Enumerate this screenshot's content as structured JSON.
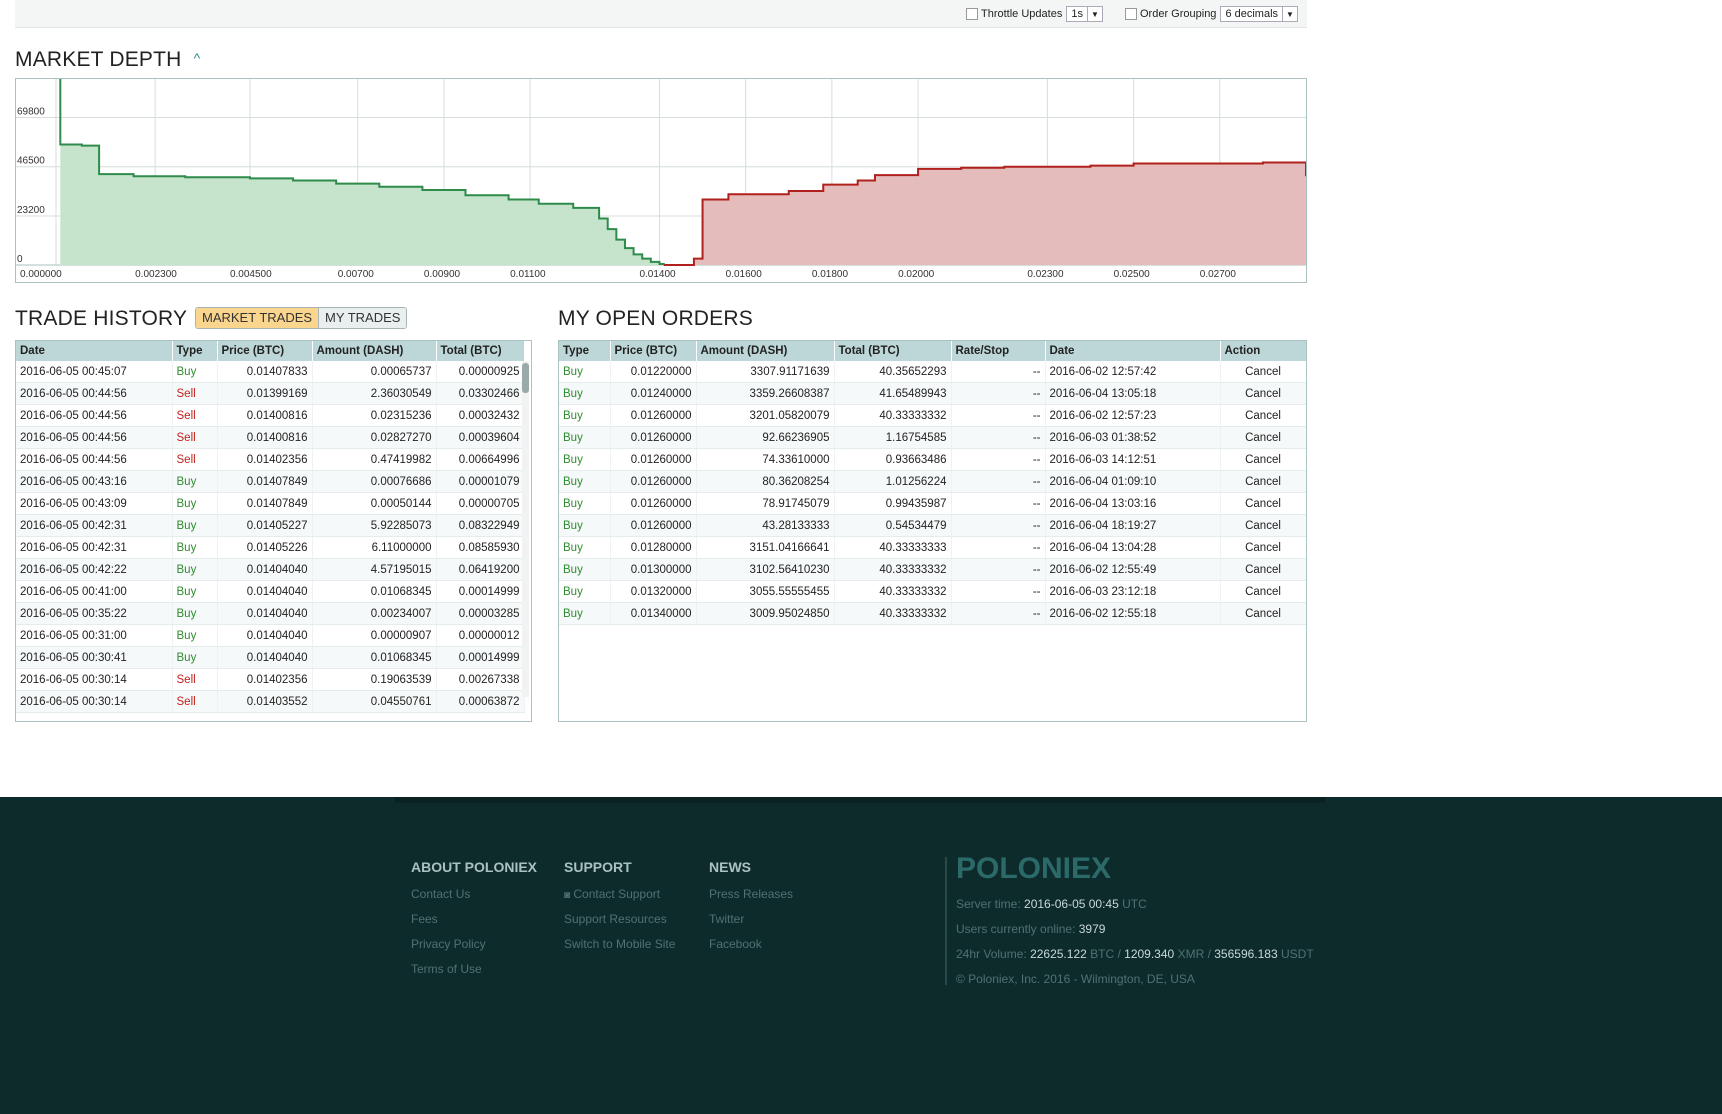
{
  "toolbar": {
    "throttle_label": "Throttle Updates",
    "throttle_value": "1s",
    "grouping_label": "Order Grouping",
    "grouping_value": "6 decimals"
  },
  "market_depth": {
    "title": "MARKET DEPTH",
    "chart_data": {
      "type": "area",
      "y_ticks": [
        "69800",
        "46500",
        "23200",
        "0"
      ],
      "y_tick_values": [
        69800,
        46500,
        23200,
        0
      ],
      "x_ticks": [
        "0.000000",
        "0.002300",
        "0.004500",
        "0.00700",
        "0.00900",
        "0.01100",
        "0.01400",
        "0.01600",
        "0.01800",
        "0.02000",
        "0.02300",
        "0.02500",
        "0.02700"
      ],
      "ylim": [
        0,
        88000
      ],
      "grid": true,
      "colors": {
        "bids": "#2e8b4a",
        "bids_fill": "#c6e4cc",
        "asks": "#b0201c",
        "asks_fill": "#e4bcbc"
      },
      "series": [
        {
          "kind": "bids",
          "x": [
            0.0001,
            0.0001,
            0.0006,
            0.001,
            0.0018,
            0.003,
            0.0045,
            0.0055,
            0.0065,
            0.0075,
            0.0085,
            0.0095,
            0.0105,
            0.0112,
            0.012,
            0.0126,
            0.0128,
            0.013,
            0.0132,
            0.0134,
            0.0136,
            0.0138,
            0.014,
            0.0141
          ],
          "y": [
            88000,
            57000,
            56500,
            43000,
            42000,
            41500,
            41000,
            40000,
            38500,
            37000,
            35500,
            33000,
            31000,
            29000,
            27000,
            22000,
            17000,
            12000,
            8000,
            5000,
            3000,
            1500,
            500,
            0
          ]
        },
        {
          "kind": "asks",
          "x": [
            0.0141,
            0.0148,
            0.015,
            0.0156,
            0.017,
            0.0178,
            0.0186,
            0.019,
            0.02,
            0.021,
            0.022,
            0.024,
            0.025,
            0.028,
            0.029
          ],
          "y": [
            0,
            3000,
            31000,
            33500,
            35000,
            38000,
            40000,
            42500,
            45500,
            46000,
            46500,
            47000,
            48000,
            48500,
            42000
          ]
        }
      ]
    }
  },
  "trade_history": {
    "title": "TRADE HISTORY",
    "tabs": [
      "MARKET TRADES",
      "MY TRADES"
    ],
    "columns": [
      "Date",
      "Type",
      "Price (BTC)",
      "Amount (DASH)",
      "Total (BTC)"
    ],
    "rows": [
      [
        "2016-06-05 00:45:07",
        "Buy",
        "0.01407833",
        "0.00065737",
        "0.00000925"
      ],
      [
        "2016-06-05 00:44:56",
        "Sell",
        "0.01399169",
        "2.36030549",
        "0.03302466"
      ],
      [
        "2016-06-05 00:44:56",
        "Sell",
        "0.01400816",
        "0.02315236",
        "0.00032432"
      ],
      [
        "2016-06-05 00:44:56",
        "Sell",
        "0.01400816",
        "0.02827270",
        "0.00039604"
      ],
      [
        "2016-06-05 00:44:56",
        "Sell",
        "0.01402356",
        "0.47419982",
        "0.00664996"
      ],
      [
        "2016-06-05 00:43:16",
        "Buy",
        "0.01407849",
        "0.00076686",
        "0.00001079"
      ],
      [
        "2016-06-05 00:43:09",
        "Buy",
        "0.01407849",
        "0.00050144",
        "0.00000705"
      ],
      [
        "2016-06-05 00:42:31",
        "Buy",
        "0.01405227",
        "5.92285073",
        "0.08322949"
      ],
      [
        "2016-06-05 00:42:31",
        "Buy",
        "0.01405226",
        "6.11000000",
        "0.08585930"
      ],
      [
        "2016-06-05 00:42:22",
        "Buy",
        "0.01404040",
        "4.57195015",
        "0.06419200"
      ],
      [
        "2016-06-05 00:41:00",
        "Buy",
        "0.01404040",
        "0.01068345",
        "0.00014999"
      ],
      [
        "2016-06-05 00:35:22",
        "Buy",
        "0.01404040",
        "0.00234007",
        "0.00003285"
      ],
      [
        "2016-06-05 00:31:00",
        "Buy",
        "0.01404040",
        "0.00000907",
        "0.00000012"
      ],
      [
        "2016-06-05 00:30:41",
        "Buy",
        "0.01404040",
        "0.01068345",
        "0.00014999"
      ],
      [
        "2016-06-05 00:30:14",
        "Sell",
        "0.01402356",
        "0.19063539",
        "0.00267338"
      ],
      [
        "2016-06-05 00:30:14",
        "Sell",
        "0.01403552",
        "0.04550761",
        "0.00063872"
      ]
    ]
  },
  "open_orders": {
    "title": "MY OPEN ORDERS",
    "columns": [
      "Type",
      "Price (BTC)",
      "Amount (DASH)",
      "Total (BTC)",
      "Rate/Stop",
      "Date",
      "Action"
    ],
    "rows": [
      [
        "Buy",
        "0.01220000",
        "3307.91171639",
        "40.35652293",
        "--",
        "2016-06-02 12:57:42",
        "Cancel"
      ],
      [
        "Buy",
        "0.01240000",
        "3359.26608387",
        "41.65489943",
        "--",
        "2016-06-04 13:05:18",
        "Cancel"
      ],
      [
        "Buy",
        "0.01260000",
        "3201.05820079",
        "40.33333332",
        "--",
        "2016-06-02 12:57:23",
        "Cancel"
      ],
      [
        "Buy",
        "0.01260000",
        "92.66236905",
        "1.16754585",
        "--",
        "2016-06-03 01:38:52",
        "Cancel"
      ],
      [
        "Buy",
        "0.01260000",
        "74.33610000",
        "0.93663486",
        "--",
        "2016-06-03 14:12:51",
        "Cancel"
      ],
      [
        "Buy",
        "0.01260000",
        "80.36208254",
        "1.01256224",
        "--",
        "2016-06-04 01:09:10",
        "Cancel"
      ],
      [
        "Buy",
        "0.01260000",
        "78.91745079",
        "0.99435987",
        "--",
        "2016-06-04 13:03:16",
        "Cancel"
      ],
      [
        "Buy",
        "0.01260000",
        "43.28133333",
        "0.54534479",
        "--",
        "2016-06-04 18:19:27",
        "Cancel"
      ],
      [
        "Buy",
        "0.01280000",
        "3151.04166641",
        "40.33333333",
        "--",
        "2016-06-04 13:04:28",
        "Cancel"
      ],
      [
        "Buy",
        "0.01300000",
        "3102.56410230",
        "40.33333332",
        "--",
        "2016-06-02 12:55:49",
        "Cancel"
      ],
      [
        "Buy",
        "0.01320000",
        "3055.55555455",
        "40.33333332",
        "--",
        "2016-06-03 23:12:18",
        "Cancel"
      ],
      [
        "Buy",
        "0.01340000",
        "3009.95024850",
        "40.33333332",
        "--",
        "2016-06-02 12:55:18",
        "Cancel"
      ]
    ]
  },
  "footer": {
    "about": {
      "title": "ABOUT POLONIEX",
      "links": [
        "Contact Us",
        "Fees",
        "Privacy Policy",
        "Terms of Use"
      ]
    },
    "support": {
      "title": "SUPPORT",
      "links": [
        "Contact Support",
        "Support Resources",
        "Switch to Mobile Site"
      ]
    },
    "news": {
      "title": "NEWS",
      "links": [
        "Press Releases",
        "Twitter",
        "Facebook"
      ]
    },
    "logo": "POLONIEX",
    "server_time_label": "Server time:",
    "server_time": "2016-06-05 00:45",
    "server_time_tz": "UTC",
    "users_label": "Users currently online:",
    "users": "3979",
    "volume_label": "24hr Volume:",
    "vol_btc": "22625.122",
    "vol_btc_unit": "BTC /",
    "vol_xmr": "1209.340",
    "vol_xmr_unit": "XMR /",
    "vol_usdt": "356596.183",
    "vol_usdt_unit": "USDT",
    "copyright": "© Poloniex, Inc. 2016 - Wilmington, DE, USA"
  }
}
